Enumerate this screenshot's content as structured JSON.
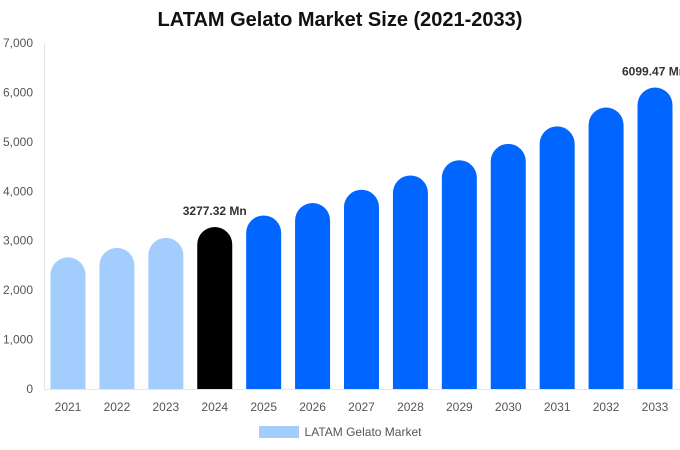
{
  "chart_data": {
    "type": "bar",
    "title": "LATAM Gelato Market Size (2021-2033)",
    "xlabel": "",
    "ylabel": "",
    "ylim": [
      0,
      7000
    ],
    "yticks": [
      "0",
      "1,000",
      "2,000",
      "3,000",
      "4,000",
      "5,000",
      "6,000",
      "7,000"
    ],
    "categories": [
      "2021",
      "2022",
      "2023",
      "2024",
      "2025",
      "2026",
      "2027",
      "2028",
      "2029",
      "2030",
      "2031",
      "2032",
      "2033"
    ],
    "series": [
      {
        "name": "LATAM Gelato Market",
        "values": [
          2664.2,
          2854.6,
          3058.7,
          3277.32,
          3511.6,
          3762.7,
          4031.7,
          4319.9,
          4628.8,
          4959.7,
          5314.3,
          5694.2,
          6099.47
        ]
      }
    ],
    "data_labels": {
      "3": "3277.32 Mn",
      "12": "6099.47 Mn"
    },
    "colors": {
      "historical": "#a3cdfd",
      "base_year": "#000000",
      "forecast": "#0066ff"
    },
    "grid": false,
    "legend_position": "bottom"
  }
}
